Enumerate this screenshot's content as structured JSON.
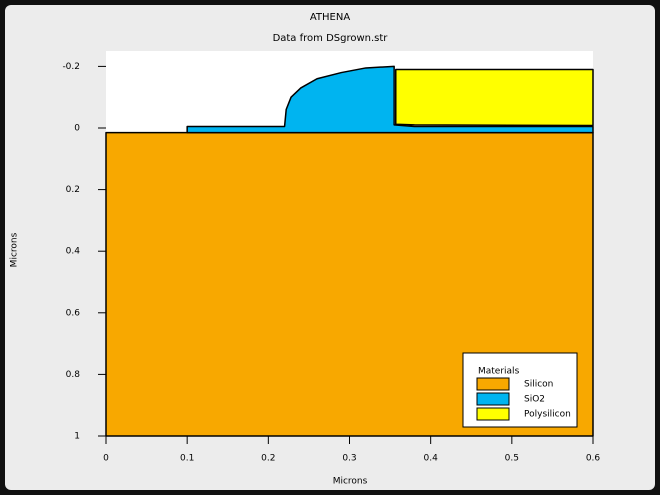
{
  "chart_data": {
    "type": "region",
    "title": "ATHENA",
    "subtitle": "Data from DSgrown.str",
    "xlabel": "Microns",
    "ylabel": "Microns",
    "legend_title": "Materials",
    "xlim": [
      0,
      0.6
    ],
    "ylim": [
      -0.25,
      1
    ],
    "y_inverted": true,
    "xticks": [
      0,
      0.1,
      0.2,
      0.3,
      0.4,
      0.5,
      0.6
    ],
    "yticks": [
      -0.2,
      0,
      0.2,
      0.4,
      0.6,
      0.8,
      1
    ],
    "series": [
      {
        "name": "Silicon",
        "color": "#f8a800",
        "x": [
          0,
          0.6,
          0.6,
          0
        ],
        "values": [
          0.015,
          0.015,
          1,
          1
        ]
      },
      {
        "name": "SiO2",
        "color": "#00b4f0",
        "x": [
          0.1,
          0.1,
          0.22,
          0.222,
          0.228,
          0.24,
          0.26,
          0.29,
          0.32,
          0.355,
          0.355,
          0.38,
          0.6,
          0.6
        ],
        "values": [
          0.015,
          -0.005,
          -0.005,
          -0.06,
          -0.1,
          -0.13,
          -0.16,
          -0.18,
          -0.195,
          -0.2,
          -0.01,
          -0.005,
          -0.005,
          0.015
        ]
      },
      {
        "name": "Polysilicon",
        "color": "#ffff00",
        "x": [
          0.357,
          0.6,
          0.6,
          0.38,
          0.357
        ],
        "values": [
          -0.19,
          -0.19,
          -0.008,
          -0.01,
          -0.012
        ]
      }
    ]
  }
}
